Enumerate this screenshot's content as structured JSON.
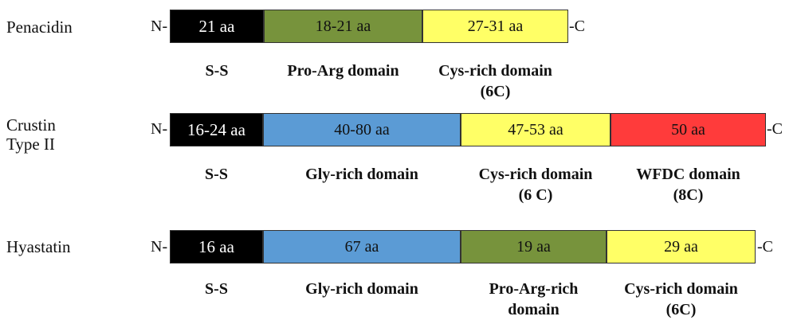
{
  "proteins": [
    {
      "name": "Penacidin",
      "n_term": "N-",
      "c_term": "-C",
      "segments": [
        {
          "length": "21 aa",
          "domain": "S-S",
          "color": "#000000"
        },
        {
          "length": "18-21 aa",
          "domain": "Pro-Arg domain",
          "color": "#77933c"
        },
        {
          "length": "27-31 aa",
          "domain": "Cys-rich domain",
          "domain_sub": "(6C)",
          "color": "#ffff66"
        }
      ]
    },
    {
      "name_line1": "Crustin",
      "name_line2": "Type II",
      "n_term": "N-",
      "c_term": "-C",
      "segments": [
        {
          "length": "16-24 aa",
          "domain": "S-S",
          "color": "#000000"
        },
        {
          "length": "40-80 aa",
          "domain": "Gly-rich domain",
          "color": "#5b9bd5"
        },
        {
          "length": "47-53 aa",
          "domain": "Cys-rich domain",
          "domain_sub": "(6 C)",
          "color": "#ffff66"
        },
        {
          "length": "50 aa",
          "domain": "WFDC  domain",
          "domain_sub": "(8C)",
          "color": "#ff3b3b"
        }
      ]
    },
    {
      "name": "Hyastatin",
      "n_term": "N-",
      "c_term": "-C",
      "segments": [
        {
          "length": "16 aa",
          "domain": "S-S",
          "color": "#000000"
        },
        {
          "length": "67 aa",
          "domain": "Gly-rich domain",
          "color": "#5b9bd5"
        },
        {
          "length": "19 aa",
          "domain": "Pro-Arg-rich",
          "domain_sub": "domain",
          "color": "#77933c"
        },
        {
          "length": "29 aa",
          "domain": "Cys-rich domain",
          "domain_sub": "(6C)",
          "color": "#ffff66"
        }
      ]
    }
  ]
}
